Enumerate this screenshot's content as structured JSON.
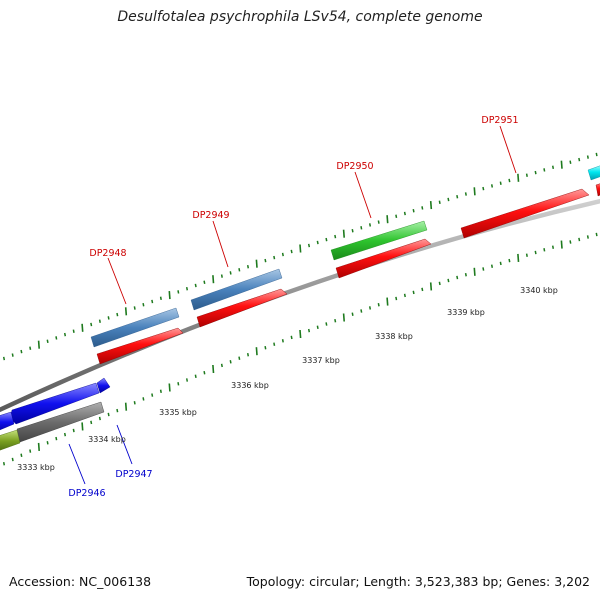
{
  "title": "Desulfotalea psychrophila LSv54, complete genome",
  "footer": {
    "accession": "Accession: NC_006138",
    "summary": "Topology: circular; Length: 3,523,383 bp; Genes: 3,202"
  },
  "colors": {
    "backbone": "#8c8c8c",
    "tick": "#1e7a1e",
    "label_forward": "#cc0000",
    "label_reverse": "#0000cc"
  },
  "scale_ticks": [
    {
      "kbp": 3333,
      "label": "3333 kbp"
    },
    {
      "kbp": 3334,
      "label": "3334 kbp"
    },
    {
      "kbp": 3335,
      "label": "3335 kbp"
    },
    {
      "kbp": 3336,
      "label": "3336 kbp"
    },
    {
      "kbp": 3337,
      "label": "3337 kbp"
    },
    {
      "kbp": 3338,
      "label": "3338 kbp"
    },
    {
      "kbp": 3339,
      "label": "3339 kbp"
    },
    {
      "kbp": 3340,
      "label": "3340 kbp"
    }
  ],
  "gene_labels": [
    {
      "id": "DP2946",
      "strand": "reverse"
    },
    {
      "id": "DP2947",
      "strand": "reverse"
    },
    {
      "id": "DP2948",
      "strand": "forward"
    },
    {
      "id": "DP2949",
      "strand": "forward"
    },
    {
      "id": "DP2950",
      "strand": "forward"
    },
    {
      "id": "DP2951",
      "strand": "forward"
    }
  ]
}
